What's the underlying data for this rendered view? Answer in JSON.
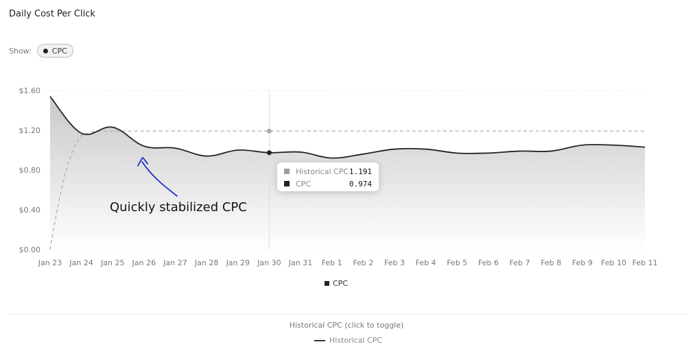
{
  "title": "Daily Cost Per Click",
  "controls": {
    "show_label": "Show:",
    "pill_label": "CPC"
  },
  "chart_data": {
    "type": "line",
    "x": [
      "Jan 23",
      "Jan 24",
      "Jan 25",
      "Jan 26",
      "Jan 27",
      "Jan 28",
      "Jan 29",
      "Jan 30",
      "Jan 31",
      "Feb 1",
      "Feb 2",
      "Feb 3",
      "Feb 4",
      "Feb 5",
      "Feb 6",
      "Feb 7",
      "Feb 8",
      "Feb 9",
      "Feb 10",
      "Feb 11"
    ],
    "y_ticks": [
      "$0.00",
      "$0.40",
      "$0.80",
      "$1.20",
      "$1.60"
    ],
    "ylim": [
      0,
      1.6
    ],
    "grid": true,
    "series": [
      {
        "name": "CPC",
        "values": [
          1.54,
          1.17,
          1.23,
          1.04,
          1.02,
          0.94,
          1.0,
          0.974,
          0.98,
          0.92,
          0.96,
          1.01,
          1.01,
          0.97,
          0.97,
          0.99,
          0.99,
          1.05,
          1.05,
          1.03
        ],
        "color": "#222222",
        "fill": "gradient-gray"
      },
      {
        "name": "Historical CPC",
        "values": [
          0.0,
          1.15,
          1.191,
          1.191,
          1.191,
          1.191,
          1.191,
          1.191,
          1.191,
          1.191,
          1.191,
          1.191,
          1.191,
          1.191,
          1.191,
          1.191,
          1.191,
          1.191,
          1.191,
          1.191
        ],
        "color": "#aaaaaa",
        "style": "dashed"
      }
    ],
    "tooltip": {
      "x": "Jan 30",
      "rows": [
        {
          "label": "Historical CPC",
          "value": "1.191",
          "color": "#9e9e9e"
        },
        {
          "label": "CPC",
          "value": "0.974",
          "color": "#222222"
        }
      ]
    },
    "annotation": {
      "text": "Quickly stabilized CPC",
      "color": "#1a2fc9"
    },
    "legend": [
      "CPC"
    ]
  },
  "historical_toggle": {
    "label": "Historical CPC (click to toggle)",
    "legend_label": "Historical CPC"
  }
}
